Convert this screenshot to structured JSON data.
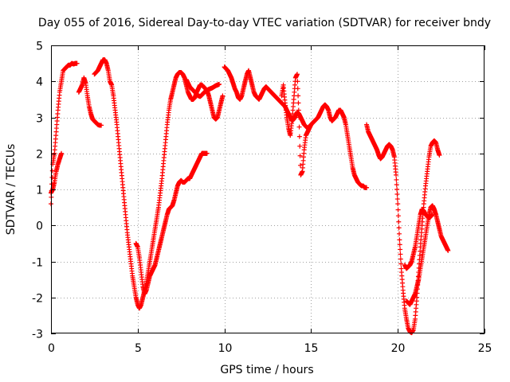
{
  "chart_data": {
    "type": "scatter",
    "title": "Day 055 of 2016, Sidereal Day-to-day VTEC variation (SDTVAR) for receiver bndy",
    "xlabel": "GPS time / hours",
    "ylabel": "SDTVAR / TECUs",
    "xlim": [
      0,
      25
    ],
    "ylim": [
      -3,
      5
    ],
    "x_ticks": [
      "0",
      "5",
      "10",
      "15",
      "20",
      "25"
    ],
    "y_ticks": [
      "-3",
      "-2",
      "-1",
      "0",
      "1",
      "2",
      "3",
      "4",
      "5"
    ],
    "grid": true,
    "marker": "+",
    "color": "#ff0000",
    "series": [
      {
        "x": [
          0.0,
          0.1,
          0.2,
          0.3,
          0.4,
          0.5,
          0.6,
          0.7,
          0.8,
          0.9,
          1.0,
          1.1,
          1.2,
          1.3,
          1.4,
          1.5
        ],
        "values": [
          0.6,
          1.7,
          2.0,
          2.6,
          3.2,
          3.7,
          4.0,
          4.3,
          4.35,
          4.4,
          4.45,
          4.45,
          4.5,
          4.48,
          4.5,
          4.5
        ]
      },
      {
        "x": [
          0.0,
          0.1,
          0.2,
          0.3,
          0.4,
          0.5,
          0.6
        ],
        "values": [
          0.9,
          1.0,
          1.2,
          1.5,
          1.7,
          1.85,
          2.0
        ]
      },
      {
        "x": [
          1.6,
          1.7,
          1.8,
          1.9,
          2.0,
          2.1,
          2.2,
          2.3,
          2.4,
          2.5,
          2.6,
          2.7,
          2.8,
          2.9
        ],
        "values": [
          3.7,
          3.8,
          3.9,
          4.1,
          3.95,
          3.6,
          3.3,
          3.1,
          2.95,
          2.9,
          2.85,
          2.8,
          2.78,
          2.78
        ]
      },
      {
        "x": [
          2.5,
          2.6,
          2.7,
          2.8,
          2.9,
          3.0,
          3.1,
          3.2,
          3.3,
          3.4,
          3.5,
          3.6,
          3.7,
          3.8,
          3.9,
          4.0,
          4.1,
          4.2,
          4.3,
          4.4,
          4.5,
          4.6,
          4.7,
          4.8,
          4.9,
          5.0,
          5.1,
          5.2,
          5.3,
          5.4,
          5.5,
          5.6,
          5.7,
          5.8,
          5.9,
          6.0,
          6.1,
          6.2,
          6.3,
          6.4,
          6.5,
          6.6,
          6.7,
          6.8,
          6.9,
          7.0,
          7.1,
          7.2,
          7.3,
          7.4,
          7.5,
          7.6,
          7.7,
          7.8,
          7.9,
          8.0,
          8.1,
          8.2,
          8.3,
          8.4,
          8.5,
          8.6,
          8.7,
          8.8,
          8.9,
          9.0,
          9.1,
          9.2,
          9.3,
          9.4,
          9.5,
          9.6,
          9.7,
          9.8,
          9.9
        ],
        "values": [
          4.2,
          4.25,
          4.3,
          4.4,
          4.5,
          4.6,
          4.6,
          4.5,
          4.3,
          4.0,
          3.9,
          3.6,
          3.2,
          2.8,
          2.3,
          1.8,
          1.3,
          0.8,
          0.3,
          -0.2,
          -0.6,
          -1.0,
          -1.4,
          -1.7,
          -2.0,
          -2.2,
          -2.3,
          -2.2,
          -2.0,
          -1.8,
          -1.6,
          -1.3,
          -1.0,
          -0.7,
          -0.4,
          -0.1,
          0.2,
          0.5,
          0.9,
          1.3,
          1.8,
          2.3,
          2.8,
          3.2,
          3.5,
          3.7,
          3.9,
          4.1,
          4.2,
          4.25,
          4.25,
          4.2,
          4.1,
          3.9,
          3.7,
          3.6,
          3.5,
          3.5,
          3.55,
          3.7,
          3.8,
          3.9,
          3.9,
          3.85,
          3.8,
          3.75,
          3.6,
          3.4,
          3.2,
          3.0,
          2.95,
          3.0,
          3.2,
          3.4,
          3.6
        ]
      },
      {
        "x": [
          4.9,
          5.0,
          5.1,
          5.2,
          5.3,
          5.4,
          5.5,
          5.6,
          5.7,
          5.8,
          5.9,
          6.0,
          6.1,
          6.2,
          6.3,
          6.4,
          6.5,
          6.6,
          6.7,
          6.8,
          6.9,
          7.0,
          7.1,
          7.2,
          7.3,
          7.4,
          7.5,
          7.6,
          7.7,
          7.8,
          7.9,
          8.0,
          8.1,
          8.2,
          8.3,
          8.4,
          8.5,
          8.6,
          8.7,
          8.8,
          8.9,
          9.0
        ],
        "values": [
          -0.5,
          -0.6,
          -0.9,
          -1.3,
          -1.7,
          -1.9,
          -1.8,
          -1.6,
          -1.4,
          -1.3,
          -1.2,
          -1.1,
          -0.9,
          -0.7,
          -0.5,
          -0.3,
          -0.1,
          0.1,
          0.3,
          0.45,
          0.5,
          0.55,
          0.7,
          0.9,
          1.1,
          1.2,
          1.25,
          1.2,
          1.2,
          1.25,
          1.3,
          1.3,
          1.4,
          1.5,
          1.6,
          1.7,
          1.8,
          1.9,
          2.0,
          2.0,
          2.0,
          2.0
        ]
      },
      {
        "x": [
          7.8,
          7.9,
          8.0,
          8.1,
          8.2,
          8.3,
          8.4,
          8.5,
          8.6,
          8.7,
          8.8,
          8.9,
          9.0,
          9.1,
          9.2,
          9.3,
          9.4,
          9.5,
          9.6,
          9.7
        ],
        "values": [
          4.05,
          3.95,
          3.85,
          3.8,
          3.75,
          3.7,
          3.65,
          3.6,
          3.58,
          3.62,
          3.68,
          3.72,
          3.75,
          3.78,
          3.8,
          3.82,
          3.85,
          3.88,
          3.9,
          3.92
        ]
      },
      {
        "x": [
          10.0,
          10.1,
          10.2,
          10.3,
          10.4,
          10.5,
          10.6,
          10.7,
          10.8,
          10.9,
          11.0,
          11.1,
          11.2,
          11.3,
          11.4,
          11.5,
          11.6,
          11.7,
          11.8,
          11.9,
          12.0,
          12.1,
          12.2,
          12.3,
          12.4,
          12.5,
          12.6,
          12.7,
          12.8,
          12.9,
          13.0,
          13.1,
          13.2,
          13.3,
          13.4,
          13.5,
          13.6,
          13.7,
          13.8,
          13.9,
          14.0,
          14.1,
          14.2,
          14.3,
          14.4,
          14.5,
          14.6,
          14.7,
          14.8,
          14.9,
          15.0,
          15.1,
          15.2,
          15.3,
          15.4,
          15.5,
          15.6,
          15.7,
          15.8,
          15.9,
          16.0,
          16.1,
          16.2,
          16.3,
          16.4,
          16.5,
          16.6,
          16.7,
          16.8,
          16.9,
          17.0,
          17.1,
          17.2,
          17.3,
          17.4,
          17.5,
          17.6,
          17.7,
          17.8,
          17.9,
          18.0,
          18.1,
          18.2
        ],
        "values": [
          4.4,
          4.35,
          4.3,
          4.2,
          4.1,
          3.95,
          3.8,
          3.7,
          3.55,
          3.5,
          3.6,
          3.8,
          4.0,
          4.2,
          4.3,
          4.1,
          3.9,
          3.7,
          3.6,
          3.55,
          3.5,
          3.6,
          3.7,
          3.8,
          3.85,
          3.8,
          3.75,
          3.7,
          3.65,
          3.6,
          3.55,
          3.5,
          3.45,
          3.4,
          3.35,
          3.3,
          3.2,
          3.1,
          3.0,
          2.9,
          2.95,
          3.05,
          3.15,
          3.1,
          3.0,
          2.9,
          2.8,
          2.75,
          2.7,
          2.75,
          2.8,
          2.85,
          2.9,
          2.95,
          3.0,
          3.1,
          3.2,
          3.3,
          3.35,
          3.3,
          3.2,
          3.0,
          2.9,
          2.95,
          3.0,
          3.1,
          3.2,
          3.2,
          3.1,
          3.0,
          2.8,
          2.5,
          2.2,
          1.9,
          1.6,
          1.4,
          1.3,
          1.2,
          1.15,
          1.1,
          1.1,
          1.05,
          1.05
        ]
      },
      {
        "x": [
          13.3,
          13.4,
          13.5,
          13.6,
          13.7,
          13.8,
          13.9,
          14.0,
          14.1,
          14.2,
          14.3,
          14.4,
          14.5,
          14.6,
          14.7,
          14.8,
          14.9,
          15.0
        ],
        "values": [
          3.6,
          3.9,
          3.4,
          3.0,
          2.7,
          2.5,
          2.9,
          3.5,
          4.1,
          4.2,
          3.0,
          1.4,
          1.5,
          2.1,
          2.5,
          2.6,
          2.7,
          2.8
        ]
      },
      {
        "x": [
          18.2,
          18.3,
          18.4,
          18.5,
          18.6,
          18.7,
          18.8,
          18.9,
          19.0,
          19.1,
          19.2,
          19.3,
          19.4,
          19.5,
          19.6,
          19.7,
          19.8,
          19.9,
          20.0,
          20.1,
          20.2,
          20.3,
          20.4,
          20.5,
          20.6,
          20.7,
          20.8,
          20.9,
          21.0,
          21.1,
          21.2,
          21.3,
          21.4,
          21.5,
          21.6,
          21.7,
          21.8,
          21.9,
          22.0,
          22.1,
          22.2,
          22.3,
          22.4
        ],
        "values": [
          2.8,
          2.6,
          2.5,
          2.4,
          2.3,
          2.2,
          2.1,
          1.95,
          1.85,
          1.9,
          2.0,
          2.1,
          2.2,
          2.25,
          2.2,
          2.1,
          1.9,
          1.4,
          0.6,
          -0.4,
          -1.2,
          -1.8,
          -2.3,
          -2.6,
          -2.85,
          -2.95,
          -2.98,
          -2.9,
          -2.6,
          -2.0,
          -1.3,
          -0.6,
          0.0,
          0.6,
          1.1,
          1.5,
          1.9,
          2.2,
          2.3,
          2.35,
          2.3,
          2.1,
          1.95
        ]
      },
      {
        "x": [
          20.5,
          20.6,
          20.7,
          20.8,
          20.9,
          21.0,
          21.1,
          21.2,
          21.3,
          21.4,
          21.5,
          21.6,
          21.7,
          21.8,
          21.9,
          22.0,
          22.1,
          22.2,
          22.3,
          22.4,
          22.5,
          22.6,
          22.7,
          22.8,
          22.9
        ],
        "values": [
          -2.1,
          -2.15,
          -2.2,
          -2.1,
          -2.0,
          -1.9,
          -1.7,
          -1.5,
          -1.2,
          -0.9,
          -0.6,
          -0.3,
          0.0,
          0.3,
          0.5,
          0.55,
          0.45,
          0.3,
          0.1,
          -0.1,
          -0.3,
          -0.4,
          -0.5,
          -0.6,
          -0.7
        ]
      },
      {
        "x": [
          20.4,
          20.5,
          20.6,
          20.7,
          20.8,
          20.9,
          21.0,
          21.1,
          21.2,
          21.3,
          21.4,
          21.5,
          21.6,
          21.7,
          21.8,
          21.9,
          22.0
        ],
        "values": [
          -1.1,
          -1.2,
          -1.15,
          -1.1,
          -1.0,
          -0.8,
          -0.6,
          -0.3,
          0.0,
          0.3,
          0.45,
          0.4,
          0.3,
          0.25,
          0.2,
          0.25,
          0.3
        ]
      }
    ]
  }
}
